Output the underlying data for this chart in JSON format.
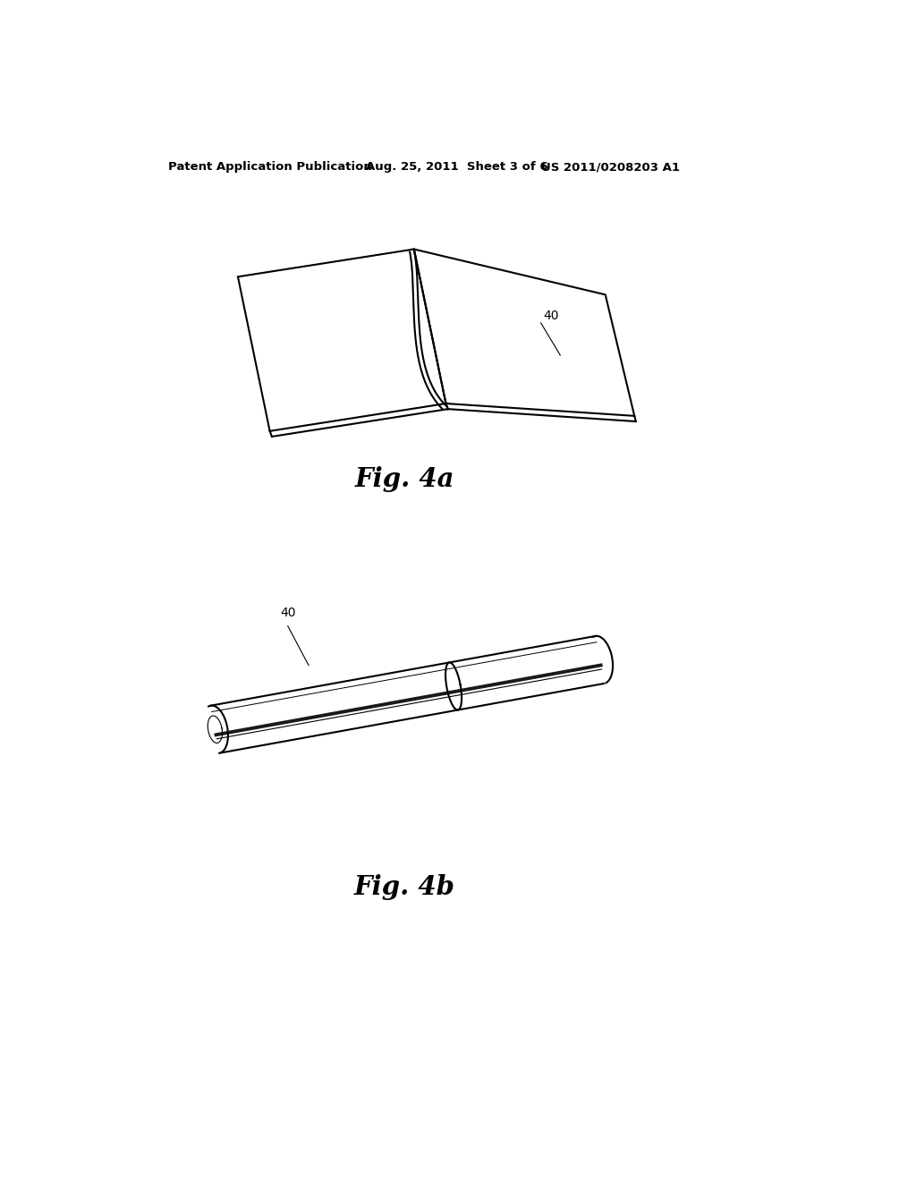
{
  "background_color": "#ffffff",
  "header_text": "Patent Application Publication",
  "header_date": "Aug. 25, 2011  Sheet 3 of 6",
  "header_patent": "US 2011/0208203 A1",
  "fig4a_label": "Fig. 4a",
  "fig4b_label": "Fig. 4b",
  "label_40": "40",
  "line_color": "#000000",
  "line_width": 1.5,
  "thin_line": 0.8,
  "thick_line": 2.5
}
